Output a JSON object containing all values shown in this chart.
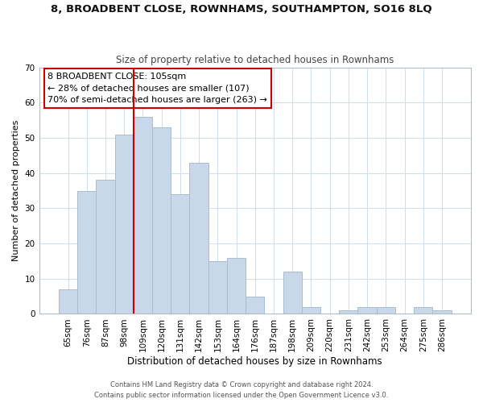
{
  "title1": "8, BROADBENT CLOSE, ROWNHAMS, SOUTHAMPTON, SO16 8LQ",
  "title2": "Size of property relative to detached houses in Rownhams",
  "xlabel": "Distribution of detached houses by size in Rownhams",
  "ylabel": "Number of detached properties",
  "footer1": "Contains HM Land Registry data © Crown copyright and database right 2024.",
  "footer2": "Contains public sector information licensed under the Open Government Licence v3.0.",
  "bin_labels": [
    "65sqm",
    "76sqm",
    "87sqm",
    "98sqm",
    "109sqm",
    "120sqm",
    "131sqm",
    "142sqm",
    "153sqm",
    "164sqm",
    "176sqm",
    "187sqm",
    "198sqm",
    "209sqm",
    "220sqm",
    "231sqm",
    "242sqm",
    "253sqm",
    "264sqm",
    "275sqm",
    "286sqm"
  ],
  "bar_heights": [
    7,
    35,
    38,
    51,
    56,
    53,
    34,
    43,
    15,
    16,
    5,
    0,
    12,
    2,
    0,
    1,
    2,
    2,
    0,
    2,
    1
  ],
  "bar_color": "#c8d8ea",
  "bar_edgecolor": "#a8bece",
  "vline_x_index": 4,
  "vline_color": "#cc0000",
  "annotation_line1": "8 BROADBENT CLOSE: 105sqm",
  "annotation_line2": "← 28% of detached houses are smaller (107)",
  "annotation_line3": "70% of semi-detached houses are larger (263) →",
  "box_edgecolor": "#cc0000",
  "ylim": [
    0,
    70
  ],
  "yticks": [
    0,
    10,
    20,
    30,
    40,
    50,
    60,
    70
  ],
  "background_color": "#ffffff",
  "grid_color": "#d0dce8",
  "title1_fontsize": 9.5,
  "title2_fontsize": 8.5,
  "xlabel_fontsize": 8.5,
  "ylabel_fontsize": 8,
  "tick_fontsize": 7.5,
  "annotation_fontsize": 8,
  "footer_fontsize": 6
}
